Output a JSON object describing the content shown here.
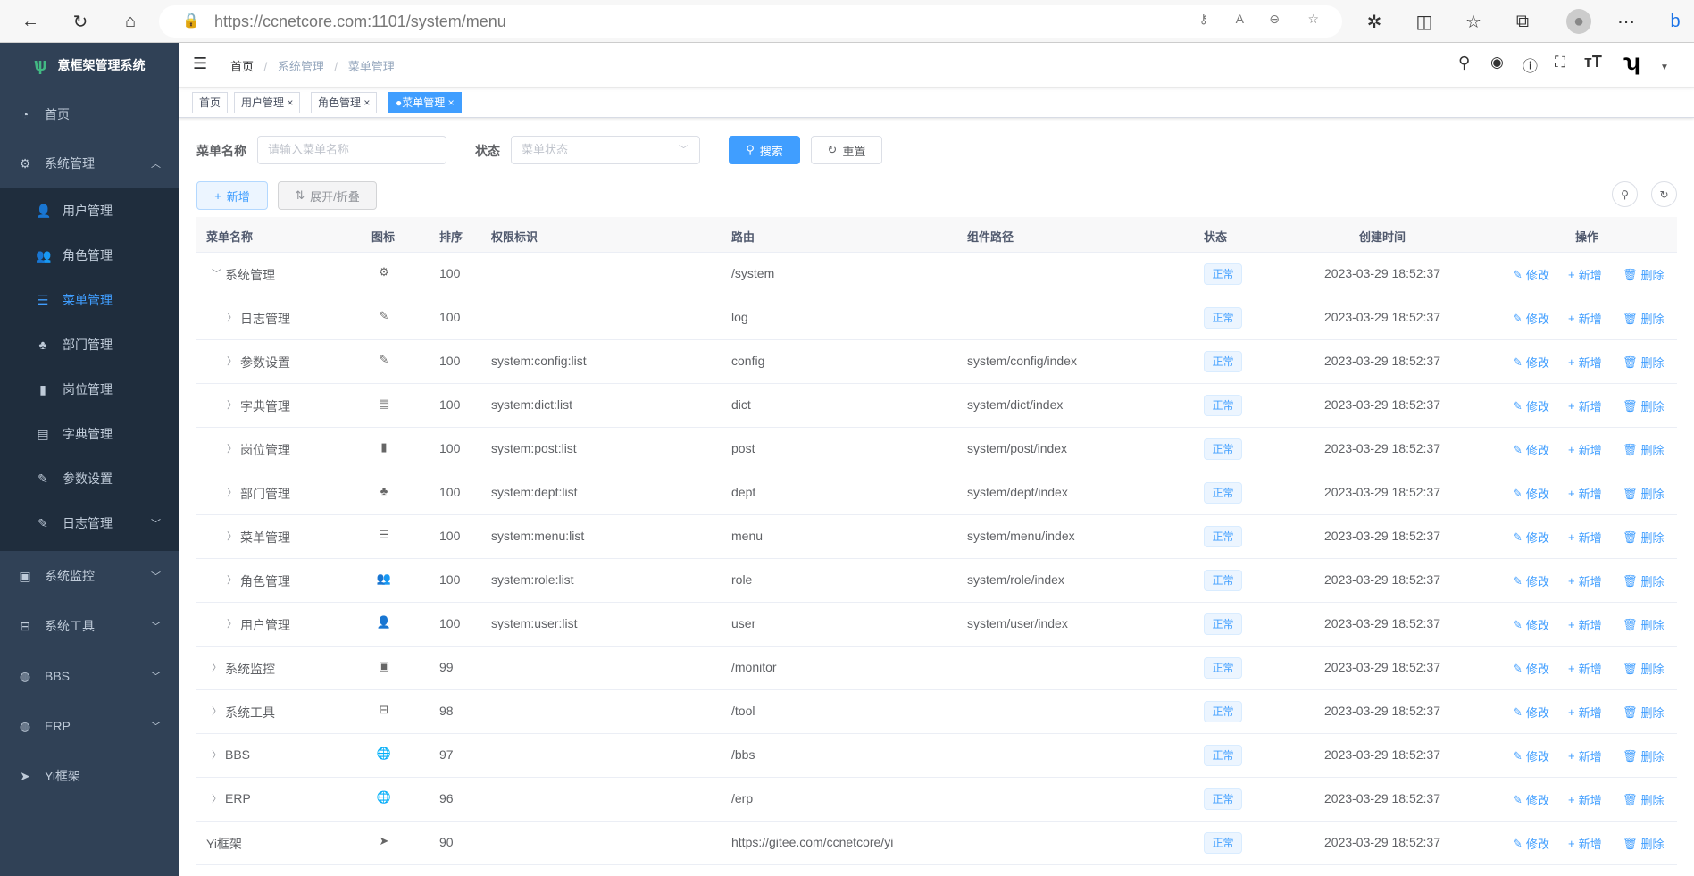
{
  "browser": {
    "url_host": "https://ccnetcore.com",
    "url_rest": ":1101/system/menu"
  },
  "sidebar": {
    "title": "意框架管理系统",
    "items": [
      {
        "label": "首页",
        "icon": "dashboard-icon"
      },
      {
        "label": "系统管理",
        "icon": "gear-icon",
        "expanded": true
      },
      {
        "label": "用户管理",
        "icon": "user-icon"
      },
      {
        "label": "角色管理",
        "icon": "peoples-icon"
      },
      {
        "label": "菜单管理",
        "icon": "tree-table-icon",
        "active": true
      },
      {
        "label": "部门管理",
        "icon": "tree-icon"
      },
      {
        "label": "岗位管理",
        "icon": "post-icon"
      },
      {
        "label": "字典管理",
        "icon": "dict-icon"
      },
      {
        "label": "参数设置",
        "icon": "edit-icon"
      },
      {
        "label": "日志管理",
        "icon": "log-icon"
      },
      {
        "label": "系统监控",
        "icon": "monitor-icon"
      },
      {
        "label": "系统工具",
        "icon": "tool-icon"
      },
      {
        "label": "BBS",
        "icon": "globe-icon"
      },
      {
        "label": "ERP",
        "icon": "globe-icon"
      },
      {
        "label": "Yi框架",
        "icon": "send-icon"
      }
    ]
  },
  "breadcrumb": [
    "首页",
    "系统管理",
    "菜单管理"
  ],
  "tags": [
    "首页",
    "用户管理",
    "角色管理",
    "菜单管理"
  ],
  "search": {
    "name_label": "菜单名称",
    "name_placeholder": "请输入菜单名称",
    "status_label": "状态",
    "status_placeholder": "菜单状态",
    "search_btn": "搜索",
    "reset_btn": "重置"
  },
  "toolbar": {
    "add": "新增",
    "toggle": "展开/折叠"
  },
  "accent": "#409eff",
  "table": {
    "headers": [
      "菜单名称",
      "图标",
      "排序",
      "权限标识",
      "路由",
      "组件路径",
      "状态",
      "创建时间",
      "操作"
    ],
    "actions": [
      "修改",
      "新增",
      "删除"
    ],
    "rows": [
      {
        "name": "系统管理",
        "level": 0,
        "arrow": "down",
        "icon": "⚙",
        "sort": "100",
        "perms": "",
        "route": "/system",
        "component": "",
        "status": "正常",
        "created": "2023-03-29 18:52:37"
      },
      {
        "name": "日志管理",
        "level": 1,
        "arrow": "right",
        "icon": "✎",
        "sort": "100",
        "perms": "",
        "route": "log",
        "component": "",
        "status": "正常",
        "created": "2023-03-29 18:52:37"
      },
      {
        "name": "参数设置",
        "level": 1,
        "arrow": "right",
        "icon": "✎",
        "sort": "100",
        "perms": "system:config:list",
        "route": "config",
        "component": "system/config/index",
        "status": "正常",
        "created": "2023-03-29 18:52:37"
      },
      {
        "name": "字典管理",
        "level": 1,
        "arrow": "right",
        "icon": "▤",
        "sort": "100",
        "perms": "system:dict:list",
        "route": "dict",
        "component": "system/dict/index",
        "status": "正常",
        "created": "2023-03-29 18:52:37"
      },
      {
        "name": "岗位管理",
        "level": 1,
        "arrow": "right",
        "icon": "▮",
        "sort": "100",
        "perms": "system:post:list",
        "route": "post",
        "component": "system/post/index",
        "status": "正常",
        "created": "2023-03-29 18:52:37"
      },
      {
        "name": "部门管理",
        "level": 1,
        "arrow": "right",
        "icon": "♣",
        "sort": "100",
        "perms": "system:dept:list",
        "route": "dept",
        "component": "system/dept/index",
        "status": "正常",
        "created": "2023-03-29 18:52:37"
      },
      {
        "name": "菜单管理",
        "level": 1,
        "arrow": "right",
        "icon": "☰",
        "sort": "100",
        "perms": "system:menu:list",
        "route": "menu",
        "component": "system/menu/index",
        "status": "正常",
        "created": "2023-03-29 18:52:37"
      },
      {
        "name": "角色管理",
        "level": 1,
        "arrow": "right",
        "icon": "👥",
        "sort": "100",
        "perms": "system:role:list",
        "route": "role",
        "component": "system/role/index",
        "status": "正常",
        "created": "2023-03-29 18:52:37"
      },
      {
        "name": "用户管理",
        "level": 1,
        "arrow": "right",
        "icon": "👤",
        "sort": "100",
        "perms": "system:user:list",
        "route": "user",
        "component": "system/user/index",
        "status": "正常",
        "created": "2023-03-29 18:52:37"
      },
      {
        "name": "系统监控",
        "level": 0,
        "arrow": "right",
        "icon": "▣",
        "sort": "99",
        "perms": "",
        "route": "/monitor",
        "component": "",
        "status": "正常",
        "created": "2023-03-29 18:52:37"
      },
      {
        "name": "系统工具",
        "level": 0,
        "arrow": "right",
        "icon": "⊟",
        "sort": "98",
        "perms": "",
        "route": "/tool",
        "component": "",
        "status": "正常",
        "created": "2023-03-29 18:52:37"
      },
      {
        "name": "BBS",
        "level": 0,
        "arrow": "right",
        "icon": "🌐",
        "sort": "97",
        "perms": "",
        "route": "/bbs",
        "component": "",
        "status": "正常",
        "created": "2023-03-29 18:52:37"
      },
      {
        "name": "ERP",
        "level": 0,
        "arrow": "right",
        "icon": "🌐",
        "sort": "96",
        "perms": "",
        "route": "/erp",
        "component": "",
        "status": "正常",
        "created": "2023-03-29 18:52:37"
      },
      {
        "name": "Yi框架",
        "level": 0,
        "arrow": "",
        "icon": "➤",
        "sort": "90",
        "perms": "",
        "route": "https://gitee.com/ccnetcore/yi",
        "component": "",
        "status": "正常",
        "created": "2023-03-29 18:52:37"
      }
    ]
  }
}
